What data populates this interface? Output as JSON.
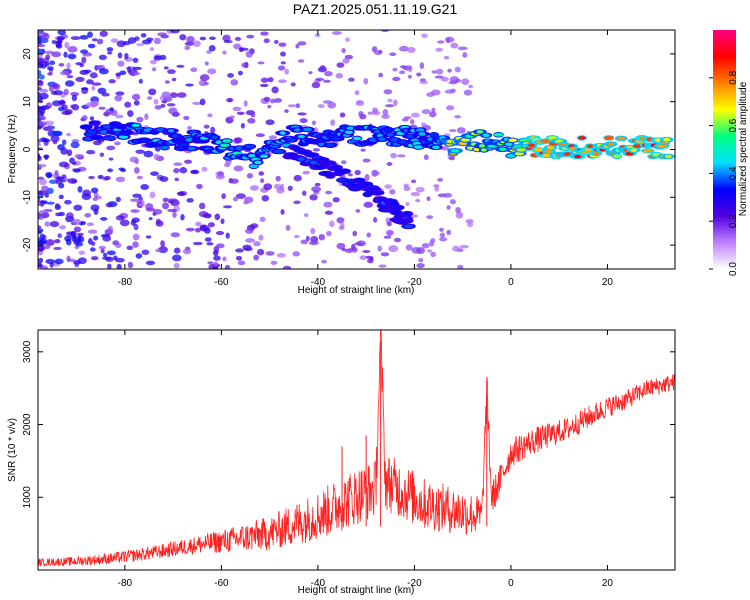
{
  "title": "PAZ1.2025.051.11.19.G21",
  "chart_data": [
    {
      "type": "heatmap",
      "xlabel": "Height of straight line (km)",
      "ylabel": "Frequency (Hz)",
      "xlim": [
        -98,
        34
      ],
      "ylim": [
        -25,
        25
      ],
      "xticks": [
        -80,
        -60,
        -40,
        -20,
        0,
        20
      ],
      "yticks": [
        -20,
        -10,
        0,
        10,
        20
      ],
      "colorbar": {
        "label": "Normalized spectral amplitude",
        "range": [
          0,
          1
        ],
        "ticks": [
          0.0,
          0.2,
          0.4,
          0.6,
          0.8
        ],
        "tick_labels": [
          "0.0",
          "0.2",
          "0.4",
          "0.6",
          "0.8"
        ],
        "colormap": [
          "#ffffff",
          "#c080ff",
          "#5000e0",
          "#0000ff",
          "#00e0ff",
          "#00ff80",
          "#ffff00",
          "#ff8000",
          "#ff0000",
          "#ff0080"
        ]
      },
      "ridge": [
        {
          "x": -88,
          "freq": 4,
          "amp": 0.35
        },
        {
          "x": -82,
          "freq": 4,
          "amp": 0.4
        },
        {
          "x": -76,
          "freq": 3,
          "amp": 0.45
        },
        {
          "x": -70,
          "freq": 2,
          "amp": 0.4
        },
        {
          "x": -64,
          "freq": 2,
          "amp": 0.4
        },
        {
          "x": -58,
          "freq": 0,
          "amp": 0.5
        },
        {
          "x": -52,
          "freq": -2,
          "amp": 0.45
        },
        {
          "x": -46,
          "freq": 3,
          "amp": 0.45
        },
        {
          "x": -40,
          "freq": 2,
          "amp": 0.4
        },
        {
          "x": -34,
          "freq": 3,
          "amp": 0.45
        },
        {
          "x": -28,
          "freq": 3,
          "amp": 0.45
        },
        {
          "x": -22,
          "freq": 3,
          "amp": 0.45
        },
        {
          "x": -17,
          "freq": 2,
          "amp": 0.4
        },
        {
          "x": -12,
          "freq": 1,
          "amp": 0.7
        },
        {
          "x": -6,
          "freq": 2,
          "amp": 0.6
        },
        {
          "x": 0,
          "freq": 0.5,
          "amp": 0.6
        },
        {
          "x": 5,
          "freq": 0.5,
          "amp": 0.85
        },
        {
          "x": 10,
          "freq": 0.5,
          "amp": 0.8
        },
        {
          "x": 16,
          "freq": 0.5,
          "amp": 0.85
        },
        {
          "x": 22,
          "freq": 0.5,
          "amp": 0.8
        },
        {
          "x": 28,
          "freq": 0.5,
          "amp": 0.85
        },
        {
          "x": 33,
          "freq": 0.5,
          "amp": 0.8
        }
      ],
      "secondary_branch": [
        {
          "x": -46,
          "freq": 0,
          "amp": 0.35
        },
        {
          "x": -40,
          "freq": -3,
          "amp": 0.35
        },
        {
          "x": -34,
          "freq": -6,
          "amp": 0.35
        },
        {
          "x": -28,
          "freq": -10,
          "amp": 0.35
        },
        {
          "x": -24,
          "freq": -13,
          "amp": 0.35
        },
        {
          "x": -21,
          "freq": -15,
          "amp": 0.35
        }
      ]
    },
    {
      "type": "line",
      "xlabel": "Height of straight line (km)",
      "ylabel": "SNR (10 * v/v)",
      "xlim": [
        -98,
        34
      ],
      "ylim": [
        0,
        3300
      ],
      "xticks": [
        -80,
        -60,
        -40,
        -20,
        0,
        20
      ],
      "yticks": [
        1000,
        2000,
        3000
      ],
      "series": [
        {
          "color": "#ff2020",
          "x": [
            -98,
            -90,
            -82,
            -74,
            -66,
            -58,
            -50,
            -44,
            -38,
            -32,
            -28,
            -27,
            -26,
            -22,
            -18,
            -14,
            -10,
            -6,
            -5,
            -4,
            -2,
            0,
            4,
            8,
            12,
            16,
            20,
            24,
            28,
            34
          ],
          "y": [
            90,
            100,
            140,
            210,
            300,
            360,
            430,
            560,
            700,
            900,
            1000,
            3150,
            1100,
            950,
            800,
            750,
            700,
            650,
            2400,
            900,
            1200,
            1550,
            1700,
            1800,
            1900,
            2050,
            2200,
            2300,
            2450,
            2550
          ],
          "noise": [
            60,
            80,
            100,
            120,
            150,
            220,
            300,
            380,
            450,
            500,
            500,
            400,
            500,
            500,
            450,
            420,
            400,
            350,
            350,
            300,
            280,
            250,
            230,
            220,
            200,
            200,
            180,
            170,
            160,
            150
          ]
        }
      ]
    }
  ]
}
